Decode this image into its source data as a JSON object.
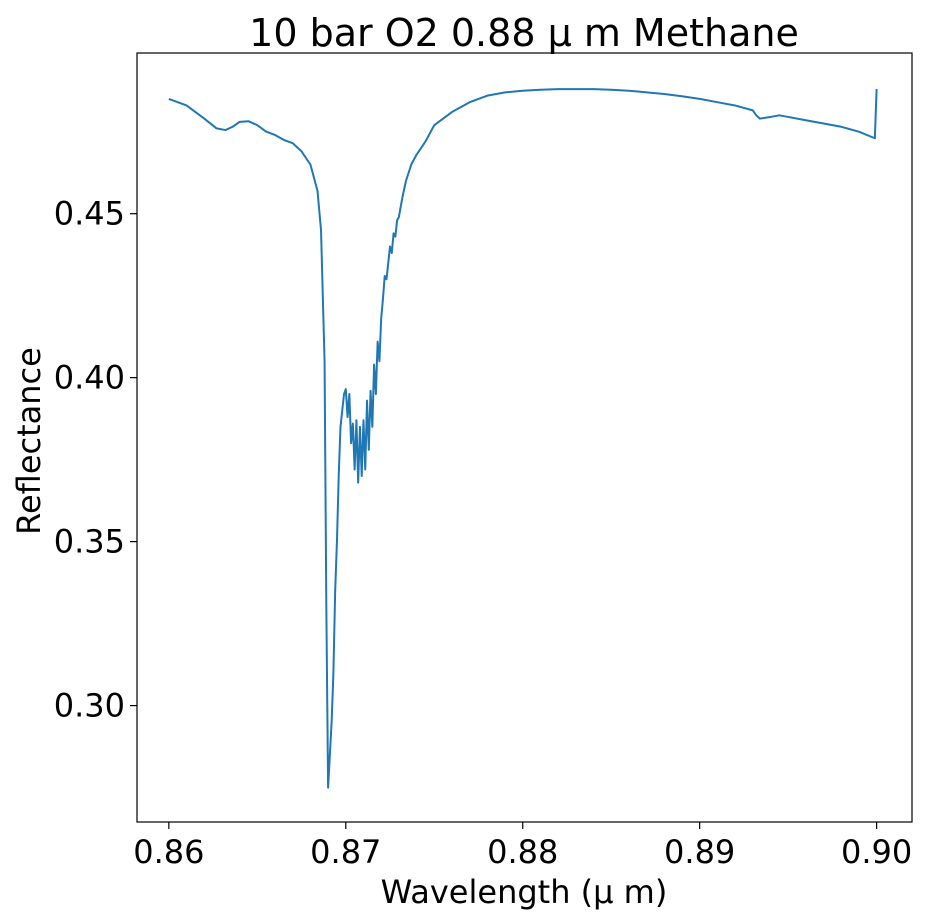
{
  "chart_data": {
    "type": "line",
    "title": "10 bar O2 0.88 μ m Methane",
    "xlabel": "Wavelength (μ m)",
    "ylabel": "Reflectance",
    "xlim": [
      0.8582,
      0.902
    ],
    "ylim": [
      0.2645,
      0.499
    ],
    "xticks": [
      0.86,
      0.87,
      0.88,
      0.89,
      0.9
    ],
    "xtick_labels": [
      "0.86",
      "0.87",
      "0.88",
      "0.89",
      "0.90"
    ],
    "yticks": [
      0.3,
      0.35,
      0.4,
      0.45
    ],
    "ytick_labels": [
      "0.30",
      "0.35",
      "0.40",
      "0.45"
    ],
    "grid": false,
    "series": [
      {
        "color": "#1f77b4",
        "x": [
          0.86,
          0.861,
          0.862,
          0.8627,
          0.8632,
          0.8636,
          0.864,
          0.8645,
          0.865,
          0.8655,
          0.866,
          0.8665,
          0.867,
          0.8675,
          0.868,
          0.8684,
          0.8686,
          0.8688,
          0.8689,
          0.869,
          0.8691,
          0.8692,
          0.8693,
          0.8694,
          0.8695,
          0.8696,
          0.8697,
          0.8698,
          0.8699,
          0.87,
          0.8701,
          0.8702,
          0.8703,
          0.8704,
          0.8705,
          0.8706,
          0.8707,
          0.8708,
          0.8709,
          0.871,
          0.8711,
          0.8712,
          0.8713,
          0.8714,
          0.8715,
          0.8716,
          0.8717,
          0.8718,
          0.8719,
          0.872,
          0.8721,
          0.8722,
          0.8723,
          0.8724,
          0.8725,
          0.8726,
          0.8727,
          0.8728,
          0.8729,
          0.873,
          0.8732,
          0.8734,
          0.8737,
          0.874,
          0.8745,
          0.875,
          0.876,
          0.877,
          0.878,
          0.879,
          0.88,
          0.881,
          0.882,
          0.883,
          0.884,
          0.885,
          0.886,
          0.887,
          0.888,
          0.889,
          0.89,
          0.891,
          0.892,
          0.893,
          0.8932,
          0.8934,
          0.894,
          0.8945,
          0.895,
          0.896,
          0.897,
          0.898,
          0.899,
          0.8999,
          0.9
        ],
        "y": [
          0.485,
          0.483,
          0.479,
          0.476,
          0.4755,
          0.4765,
          0.478,
          0.4782,
          0.477,
          0.475,
          0.474,
          0.4725,
          0.4715,
          0.469,
          0.465,
          0.457,
          0.445,
          0.405,
          0.33,
          0.275,
          0.285,
          0.295,
          0.31,
          0.335,
          0.35,
          0.37,
          0.385,
          0.39,
          0.395,
          0.3965,
          0.388,
          0.395,
          0.38,
          0.386,
          0.372,
          0.387,
          0.368,
          0.385,
          0.37,
          0.387,
          0.372,
          0.393,
          0.378,
          0.396,
          0.385,
          0.404,
          0.395,
          0.411,
          0.405,
          0.418,
          0.424,
          0.431,
          0.43,
          0.435,
          0.44,
          0.438,
          0.444,
          0.443,
          0.448,
          0.449,
          0.455,
          0.46,
          0.465,
          0.468,
          0.472,
          0.477,
          0.481,
          0.484,
          0.486,
          0.487,
          0.4875,
          0.4878,
          0.488,
          0.488,
          0.488,
          0.4878,
          0.4875,
          0.487,
          0.4865,
          0.4858,
          0.485,
          0.484,
          0.483,
          0.4815,
          0.48,
          0.479,
          0.4795,
          0.48,
          0.4795,
          0.4785,
          0.4775,
          0.4765,
          0.475,
          0.473,
          0.488
        ]
      }
    ]
  }
}
